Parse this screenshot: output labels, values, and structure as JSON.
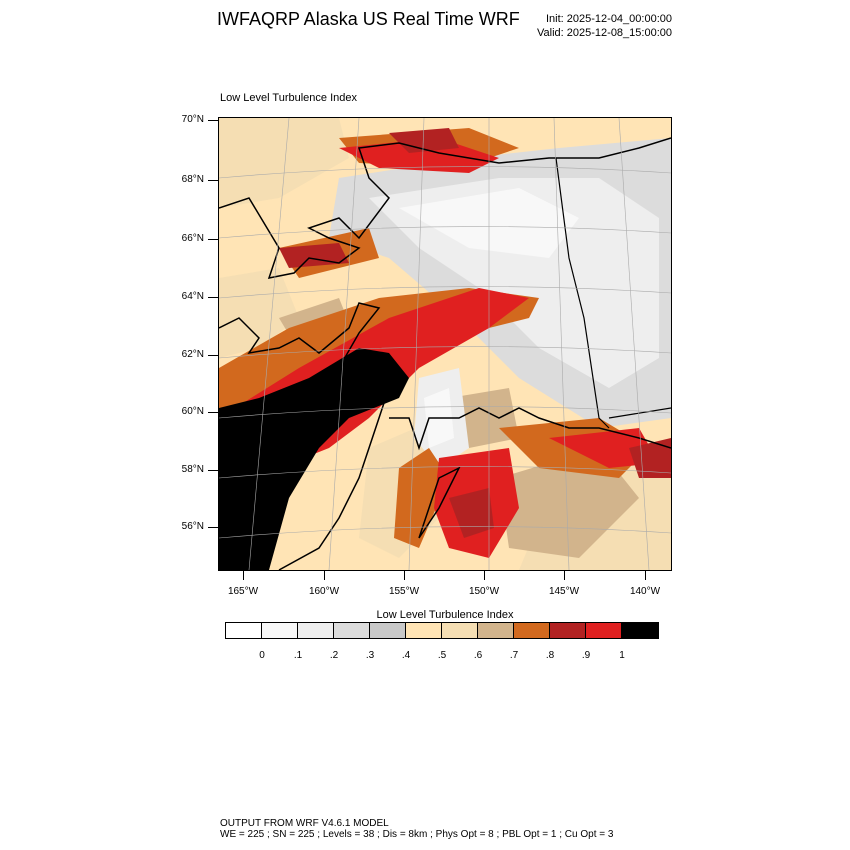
{
  "header": {
    "title": "IWFAQRP Alaska US Real Time WRF",
    "init": "Init: 2025-12-04_00:00:00",
    "valid": "Valid: 2025-12-08_15:00:00"
  },
  "map": {
    "subtitle": "Low Level Turbulence Index",
    "lat_labels": [
      "70°N",
      "68°N",
      "66°N",
      "64°N",
      "62°N",
      "60°N",
      "58°N",
      "56°N"
    ],
    "lon_labels": [
      "165°W",
      "160°W",
      "155°W",
      "150°W",
      "145°W",
      "140°W"
    ],
    "field_name": "Low Level Turbulence Index"
  },
  "colorbar": {
    "title": "Low Level Turbulence Index",
    "labels": [
      "0",
      ".1",
      ".2",
      ".3",
      ".4",
      ".5",
      ".6",
      ".7",
      ".8",
      ".9",
      "1"
    ],
    "colors": [
      "#ffffff",
      "#f8f8f8",
      "#eeeeee",
      "#dcdcdc",
      "#c8c8c8",
      "#ffe4b5",
      "#f5deb3",
      "#d2b48c",
      "#d2691e",
      "#b22222",
      "#e02020",
      "#000000"
    ]
  },
  "footer": {
    "line1": "OUTPUT FROM WRF V4.6.1 MODEL",
    "line2": "WE = 225 ; SN = 225 ; Levels = 38 ; Dis = 8km ; Phys Opt = 8 ; PBL Opt = 1 ; Cu Opt = 3"
  }
}
